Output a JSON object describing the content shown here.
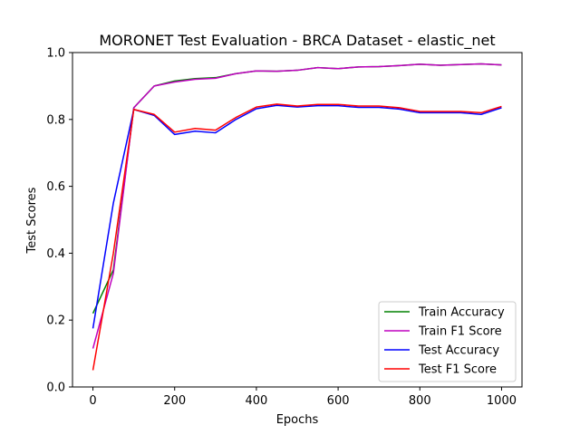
{
  "chart_data": {
    "type": "line",
    "title": "MORONET Test Evaluation - BRCA Dataset - elastic_net",
    "xlabel": "Epochs",
    "ylabel": "Test Scores",
    "xlim": [
      -50,
      1050
    ],
    "ylim": [
      0.0,
      1.0
    ],
    "xticks": [
      0,
      200,
      400,
      600,
      800,
      1000
    ],
    "yticks": [
      0.0,
      0.2,
      0.4,
      0.6,
      0.8,
      1.0
    ],
    "xtick_labels": [
      "0",
      "200",
      "400",
      "600",
      "800",
      "1000"
    ],
    "ytick_labels": [
      "0.0",
      "0.2",
      "0.4",
      "0.6",
      "0.8",
      "1.0"
    ],
    "grid": false,
    "legend_position": "lower-right",
    "x": [
      0,
      50,
      100,
      150,
      200,
      250,
      300,
      350,
      400,
      450,
      500,
      550,
      600,
      650,
      700,
      750,
      800,
      850,
      900,
      950,
      1000
    ],
    "series": [
      {
        "name": "Train Accuracy",
        "color": "#008000",
        "values": [
          0.22,
          0.35,
          0.835,
          0.9,
          0.915,
          0.922,
          0.925,
          0.937,
          0.945,
          0.944,
          0.947,
          0.955,
          0.952,
          0.957,
          0.958,
          0.961,
          0.965,
          0.962,
          0.964,
          0.966,
          0.963
        ]
      },
      {
        "name": "Train F1 Score",
        "color": "#bf00bf",
        "values": [
          0.115,
          0.34,
          0.835,
          0.9,
          0.912,
          0.92,
          0.923,
          0.937,
          0.945,
          0.944,
          0.947,
          0.955,
          0.952,
          0.957,
          0.958,
          0.961,
          0.965,
          0.962,
          0.964,
          0.966,
          0.963
        ]
      },
      {
        "name": "Test Accuracy",
        "color": "#0000ff",
        "values": [
          0.175,
          0.55,
          0.83,
          0.812,
          0.755,
          0.765,
          0.76,
          0.8,
          0.832,
          0.842,
          0.837,
          0.841,
          0.841,
          0.836,
          0.836,
          0.831,
          0.82,
          0.82,
          0.82,
          0.815,
          0.835
        ]
      },
      {
        "name": "Test F1 Score",
        "color": "#ff0000",
        "values": [
          0.05,
          0.4,
          0.83,
          0.815,
          0.762,
          0.773,
          0.768,
          0.806,
          0.837,
          0.846,
          0.84,
          0.845,
          0.845,
          0.84,
          0.84,
          0.835,
          0.824,
          0.824,
          0.824,
          0.82,
          0.839
        ]
      }
    ]
  }
}
